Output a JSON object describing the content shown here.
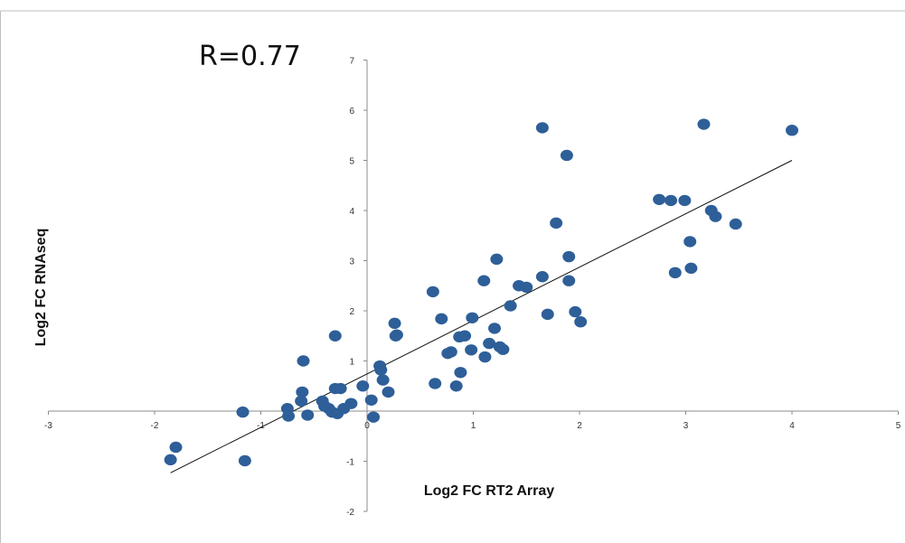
{
  "chart_data": {
    "type": "scatter",
    "annotation": "R=0.77",
    "xlabel": "Log2 FC RT2 Array",
    "ylabel": "Log2 FC RNAseq",
    "xlim": [
      -3,
      5
    ],
    "ylim": [
      -2,
      7
    ],
    "x_ticks": [
      -3,
      -2,
      -1,
      0,
      1,
      2,
      3,
      4,
      5
    ],
    "y_ticks": [
      -2,
      -1,
      0,
      1,
      2,
      3,
      4,
      5,
      6,
      7
    ],
    "grid": false,
    "legend": "none",
    "marker_color": "#2e5f98",
    "trendline": {
      "x0": -1.85,
      "y0": -1.23,
      "x1": 4.0,
      "y1": 5.0
    },
    "points": [
      {
        "x": -1.85,
        "y": -0.97
      },
      {
        "x": -1.8,
        "y": -0.72
      },
      {
        "x": -1.17,
        "y": -0.02
      },
      {
        "x": -1.15,
        "y": -0.99
      },
      {
        "x": -0.75,
        "y": 0.05
      },
      {
        "x": -0.74,
        "y": -0.1
      },
      {
        "x": -0.62,
        "y": 0.2
      },
      {
        "x": -0.61,
        "y": 0.38
      },
      {
        "x": -0.6,
        "y": 1.0
      },
      {
        "x": -0.56,
        "y": -0.08
      },
      {
        "x": -0.42,
        "y": 0.2
      },
      {
        "x": -0.4,
        "y": 0.1
      },
      {
        "x": -0.36,
        "y": 0.05
      },
      {
        "x": -0.33,
        "y": -0.02
      },
      {
        "x": -0.3,
        "y": 0.45
      },
      {
        "x": -0.3,
        "y": 1.5
      },
      {
        "x": -0.28,
        "y": -0.05
      },
      {
        "x": -0.25,
        "y": 0.45
      },
      {
        "x": -0.22,
        "y": 0.05
      },
      {
        "x": -0.15,
        "y": 0.15
      },
      {
        "x": -0.04,
        "y": 0.5
      },
      {
        "x": 0.04,
        "y": 0.22
      },
      {
        "x": 0.06,
        "y": -0.12
      },
      {
        "x": 0.12,
        "y": 0.9
      },
      {
        "x": 0.13,
        "y": 0.82
      },
      {
        "x": 0.15,
        "y": 0.62
      },
      {
        "x": 0.2,
        "y": 0.38
      },
      {
        "x": 0.26,
        "y": 1.75
      },
      {
        "x": 0.27,
        "y": 1.5
      },
      {
        "x": 0.28,
        "y": 1.52
      },
      {
        "x": 0.62,
        "y": 2.38
      },
      {
        "x": 0.64,
        "y": 0.55
      },
      {
        "x": 0.7,
        "y": 1.84
      },
      {
        "x": 0.76,
        "y": 1.15
      },
      {
        "x": 0.79,
        "y": 1.18
      },
      {
        "x": 0.84,
        "y": 0.5
      },
      {
        "x": 0.87,
        "y": 1.48
      },
      {
        "x": 0.88,
        "y": 0.77
      },
      {
        "x": 0.92,
        "y": 1.5
      },
      {
        "x": 0.98,
        "y": 1.22
      },
      {
        "x": 0.99,
        "y": 1.86
      },
      {
        "x": 1.1,
        "y": 2.6
      },
      {
        "x": 1.11,
        "y": 1.08
      },
      {
        "x": 1.15,
        "y": 1.35
      },
      {
        "x": 1.2,
        "y": 1.65
      },
      {
        "x": 1.22,
        "y": 3.03
      },
      {
        "x": 1.25,
        "y": 1.28
      },
      {
        "x": 1.28,
        "y": 1.23
      },
      {
        "x": 1.35,
        "y": 2.1
      },
      {
        "x": 1.43,
        "y": 2.5
      },
      {
        "x": 1.5,
        "y": 2.47
      },
      {
        "x": 1.65,
        "y": 2.68
      },
      {
        "x": 1.65,
        "y": 5.65
      },
      {
        "x": 1.7,
        "y": 1.93
      },
      {
        "x": 1.78,
        "y": 3.75
      },
      {
        "x": 1.88,
        "y": 5.1
      },
      {
        "x": 1.9,
        "y": 3.08
      },
      {
        "x": 1.9,
        "y": 2.6
      },
      {
        "x": 1.96,
        "y": 1.98
      },
      {
        "x": 2.01,
        "y": 1.78
      },
      {
        "x": 2.75,
        "y": 4.22
      },
      {
        "x": 2.86,
        "y": 4.2
      },
      {
        "x": 2.9,
        "y": 2.76
      },
      {
        "x": 2.99,
        "y": 4.2
      },
      {
        "x": 3.04,
        "y": 3.38
      },
      {
        "x": 3.05,
        "y": 2.85
      },
      {
        "x": 3.17,
        "y": 5.72
      },
      {
        "x": 3.24,
        "y": 4.0
      },
      {
        "x": 3.28,
        "y": 3.88
      },
      {
        "x": 3.47,
        "y": 3.73
      },
      {
        "x": 4.0,
        "y": 5.6
      }
    ]
  }
}
